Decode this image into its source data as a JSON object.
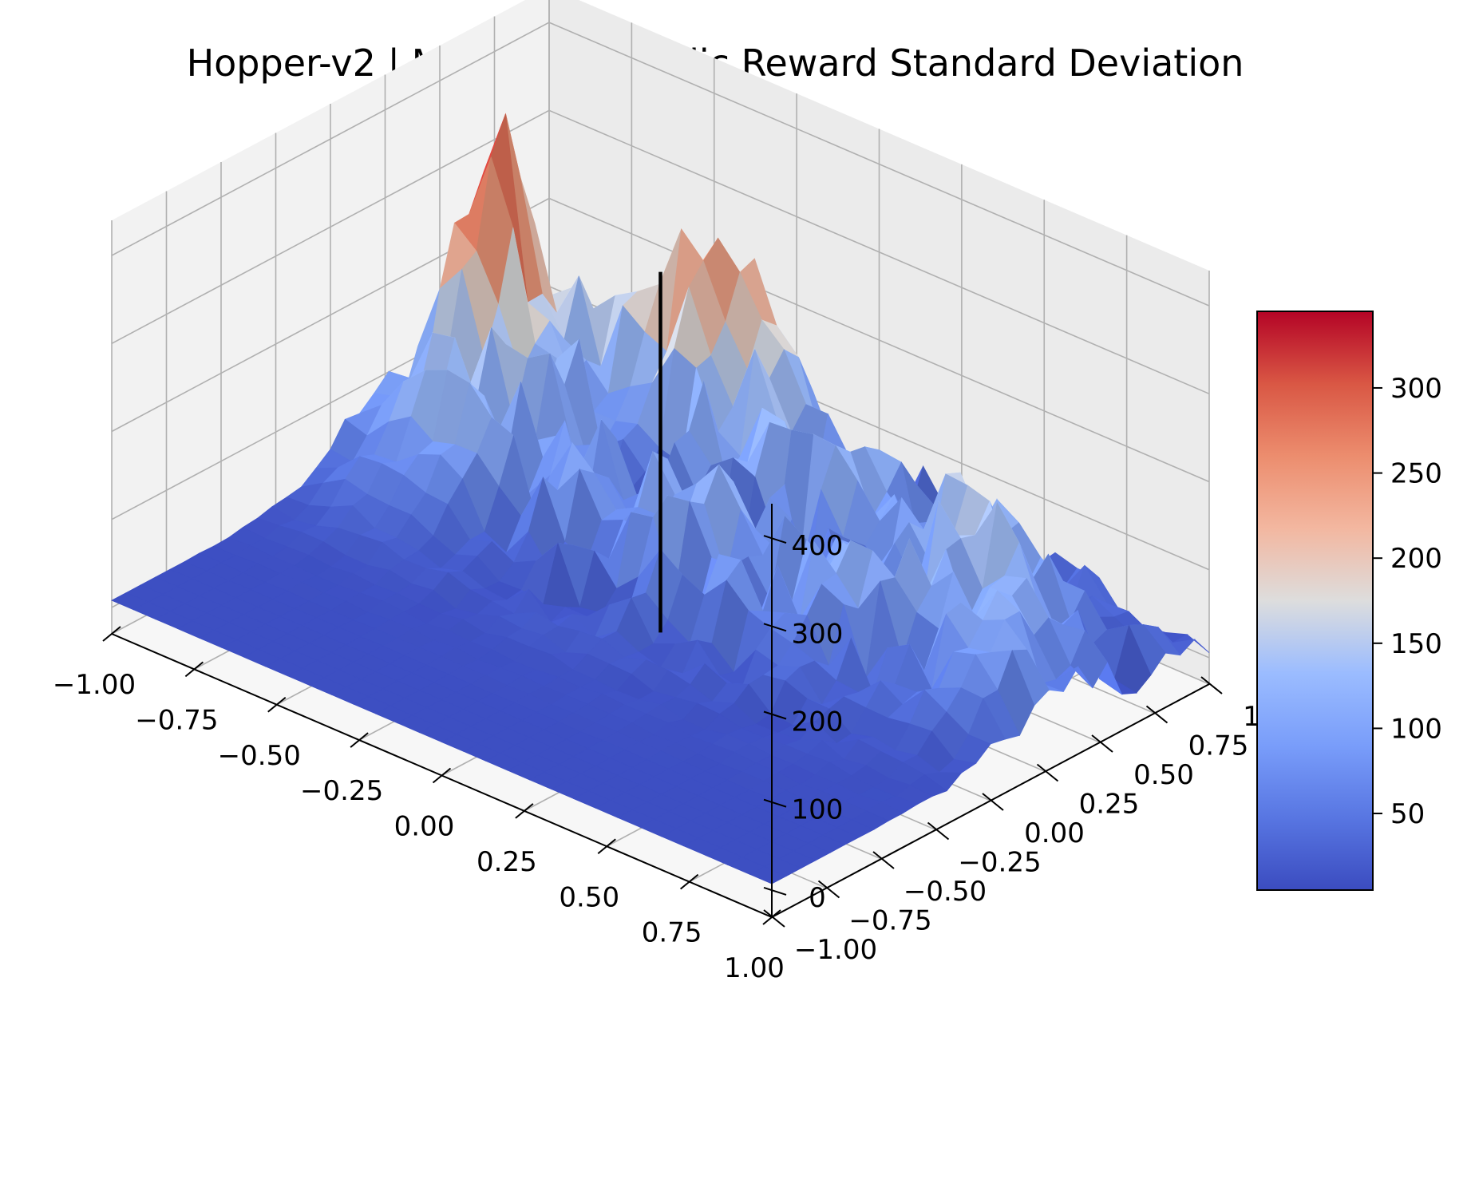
{
  "chart_data": {
    "type": "surface3d",
    "title": "Hopper-v2 | Mujoco | Episodic Reward Standard Deviation",
    "xlabel": "",
    "ylabel": "",
    "zlabel": "",
    "colormap": "coolwarm",
    "x_ticks": [
      "−1.00",
      "−0.75",
      "−0.50",
      "−0.25",
      "0.00",
      "0.25",
      "0.50",
      "0.75",
      "1.00"
    ],
    "y_ticks": [
      "−1.00",
      "−0.75",
      "−0.50",
      "−0.25",
      "0.00",
      "0.25",
      "0.50",
      "0.75",
      "1.00"
    ],
    "z_ticks": [
      "0",
      "100",
      "200",
      "300",
      "400"
    ],
    "xlim": [
      -1,
      1
    ],
    "ylim": [
      -1,
      1
    ],
    "zlim": [
      -30,
      440
    ],
    "colorbar": {
      "range": [
        5,
        345
      ],
      "ticks": [
        "50",
        "100",
        "150",
        "200",
        "250",
        "300"
      ]
    },
    "grid": true,
    "marker_line": {
      "x": 0,
      "y": 0,
      "z_range": [
        0,
        410
      ],
      "color": "#000000"
    },
    "peaks": [
      {
        "x": -0.4,
        "y": 0.85,
        "z": 345
      },
      {
        "x": -0.9,
        "y": 0.6,
        "z": 330
      },
      {
        "x": 0.6,
        "y": 0.55,
        "z": 200
      },
      {
        "x": 0.85,
        "y": 0.2,
        "z": 170
      }
    ],
    "baseline": 8
  }
}
